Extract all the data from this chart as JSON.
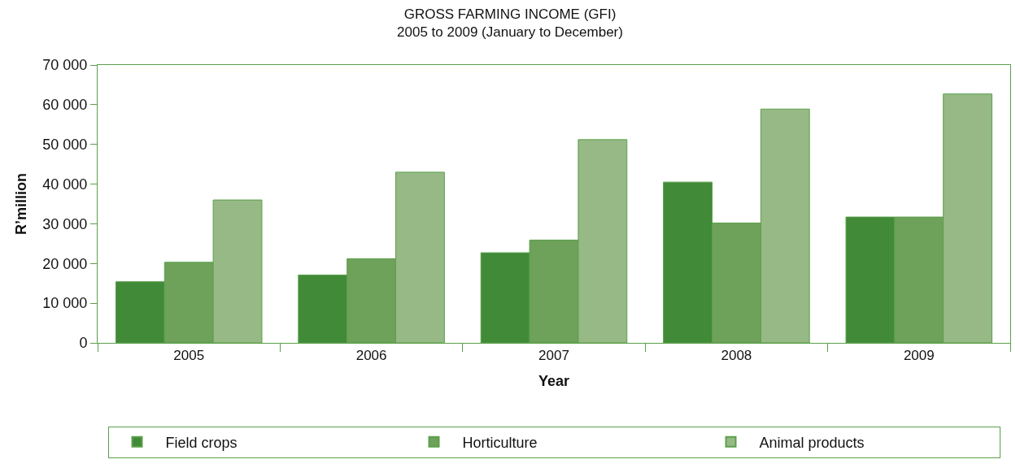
{
  "chart_data": {
    "type": "bar",
    "title": "GROSS FARMING INCOME (GFI)",
    "subtitle": "2005 to 2009 (January to December)",
    "xlabel": "Year",
    "ylabel": "R’million",
    "categories": [
      "2005",
      "2006",
      "2007",
      "2008",
      "2009"
    ],
    "series": [
      {
        "name": "Field crops",
        "color": "#418a38",
        "values": [
          15400,
          17100,
          22700,
          40500,
          31700
        ]
      },
      {
        "name": "Horticulture",
        "color": "#6ea15a",
        "values": [
          20300,
          21200,
          25900,
          30200,
          31700
        ]
      },
      {
        "name": "Animal products",
        "color": "#97b986",
        "values": [
          36000,
          43000,
          51200,
          58900,
          62700
        ]
      }
    ],
    "ylim": [
      0,
      70000
    ],
    "yticks": [
      0,
      {
        "value": 10000,
        "label": "10 000"
      },
      {
        "value": 20000,
        "label": "20 000"
      },
      {
        "value": 30000,
        "label": "30 000"
      },
      {
        "value": 40000,
        "label": "40 000"
      },
      {
        "value": 50000,
        "label": "50 000"
      },
      {
        "value": 60000,
        "label": "60 000"
      },
      {
        "value": 70000,
        "label": "70 000"
      }
    ],
    "legend": "bottom"
  }
}
